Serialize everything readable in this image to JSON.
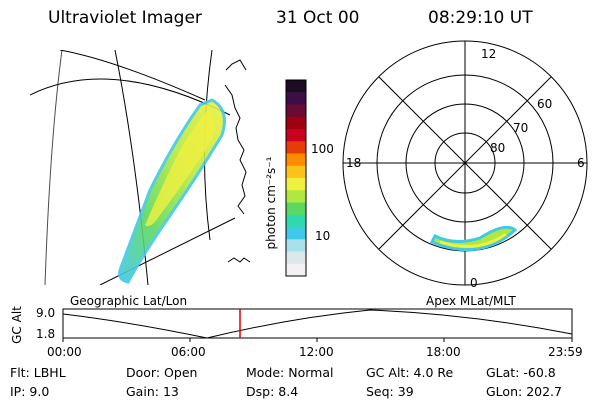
{
  "header": {
    "instrument": "Ultraviolet Imager",
    "date": "31 Oct 00",
    "time": "08:29:10 UT"
  },
  "colorbar": {
    "label": "photon cm⁻²s⁻¹",
    "ticks": [
      "100",
      "10"
    ],
    "colors": [
      "#1a0d1f",
      "#3c0e46",
      "#6a0b34",
      "#9e0012",
      "#c8001e",
      "#e63c0a",
      "#ff8c00",
      "#ffc21a",
      "#f0f040",
      "#b0e840",
      "#5cd860",
      "#30d8b0",
      "#40c8e8",
      "#a8e0ec",
      "#dde8ea",
      "#f2f2f2"
    ]
  },
  "polar": {
    "labels": {
      "top": "12",
      "bottom": "0",
      "left": "18",
      "right": "6",
      "lat60": "60",
      "lat70": "70",
      "lat80": "80"
    }
  },
  "timeline": {
    "ylabel": "GC Alt",
    "y_ticks": [
      "9.0",
      "1.8"
    ],
    "left_label": "Geographic Lat/Lon",
    "right_label": "Apex MLat/MLT",
    "x_ticks": [
      "00:00",
      "06:00",
      "12:00",
      "18:00",
      "23:59"
    ],
    "marker_time": "08:29"
  },
  "info": {
    "row1": [
      {
        "key": "Flt:",
        "val": "LBHL"
      },
      {
        "key": "Door:",
        "val": "Open"
      },
      {
        "key": "Mode:",
        "val": "Normal"
      },
      {
        "key": "GC Alt:",
        "val": "4.0 Re"
      },
      {
        "key": "GLat:",
        "val": "-60.8"
      }
    ],
    "row2": [
      {
        "key": "IP:",
        "val": "9.0"
      },
      {
        "key": "Gain:",
        "val": "13"
      },
      {
        "key": "Dsp:",
        "val": "8.4"
      },
      {
        "key": "Seq:",
        "val": "39"
      },
      {
        "key": "GLon:",
        "val": "202.7"
      }
    ]
  }
}
